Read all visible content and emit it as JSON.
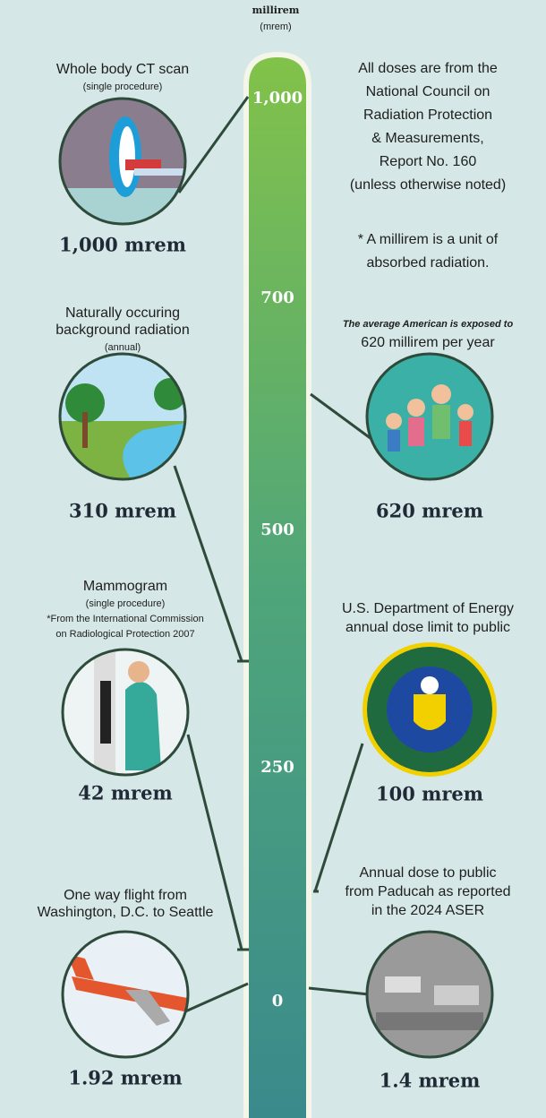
{
  "header": {
    "title": "millirem",
    "unit": "(mrem)"
  },
  "scale": [
    "1,000",
    "700",
    "500",
    "250",
    "0"
  ],
  "left": [
    {
      "title": [
        "Whole body CT scan"
      ],
      "note": [
        "(single procedure)"
      ],
      "dose": "1,000 mrem"
    },
    {
      "title": [
        "Naturally occuring",
        "background radiation"
      ],
      "note": [
        "(annual)"
      ],
      "dose": "310 mrem"
    },
    {
      "title": [
        "Mammogram"
      ],
      "note": [
        "(single procedure)",
        "*From the International Commission",
        "on Radiological Protection 2007"
      ],
      "dose": "42 mrem"
    },
    {
      "title": [
        "One way flight from",
        "Washington, D.C. to Seattle"
      ],
      "note": [],
      "dose": "1.92 mrem"
    }
  ],
  "sources": [
    "All doses are from the",
    "National Council on",
    "Radiation Protection",
    "& Measurements,",
    "Report No. 160",
    "(unless otherwise noted)"
  ],
  "definition": [
    "* A millirem is a unit of",
    "absorbed radiation."
  ],
  "right": [
    {
      "lead": "The average American is exposed to",
      "title": [
        "620 millirem per year"
      ],
      "dose": "620 mrem"
    },
    {
      "title": [
        "U.S. Department of Energy",
        "annual dose limit to public"
      ],
      "dose": "100 mrem"
    },
    {
      "title": [
        "Annual dose to public",
        "from Paducah as reported",
        "in the 2024 ASER"
      ],
      "dose": "1.4 mrem"
    }
  ]
}
